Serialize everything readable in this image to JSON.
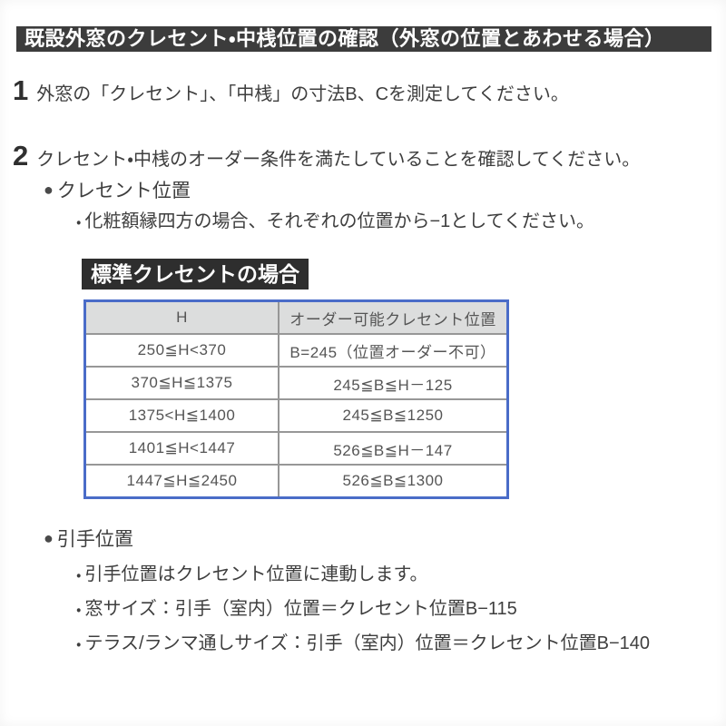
{
  "page": {
    "title": "既設外窓のクレセント・中桟位置の確認（外窓の位置とあわせる場合）",
    "bullet_char": "●",
    "sub_bullet_char": "・",
    "steps": [
      {
        "number": "1",
        "text": "外窓の「クレセント」、「中桟」の寸法B、Cを測定してください。"
      },
      {
        "number": "2",
        "text": "クレセント・中桟のオーダー条件を満たしていることを確認してください。"
      }
    ],
    "crescent_section": {
      "heading": "クレセント位置",
      "note": "化粧額縁四方の場合、それぞれの位置から−1としてください。"
    },
    "table_label": "標準クレセントの場合",
    "handle_section": {
      "heading": "引手位置",
      "notes": [
        "引手位置はクレセント位置に連動します。",
        "窓サイズ：引手（室内）位置＝クレセント位置B−115",
        "テラス/ランマ通しサイズ：引手（室内）位置＝クレセント位置B−140"
      ]
    }
  },
  "chart_data": {
    "type": "table",
    "title": "標準クレセントの場合",
    "headers": [
      "H",
      "オーダー可能クレセント位置"
    ],
    "rows": [
      [
        "250≦H<370",
        "B=245（位置オーダー不可）"
      ],
      [
        "370≦H≦1375",
        "245≦B≦H－125"
      ],
      [
        "1375<H≦1400",
        "245≦B≦1250"
      ],
      [
        "1401≦H<1447",
        "526≦B≦H－147"
      ],
      [
        "1447≦H≦2450",
        "526≦B≦1300"
      ]
    ]
  },
  "colors": {
    "title_bar_bg": "#3c3c3c",
    "label_bg": "#2e2e2e",
    "table_border_blue": "#4a6cc8",
    "table_header_bg": "#dcdddd",
    "table_inner_border": "#979797",
    "body_text": "#3e3e3e",
    "table_text": "#555555"
  }
}
